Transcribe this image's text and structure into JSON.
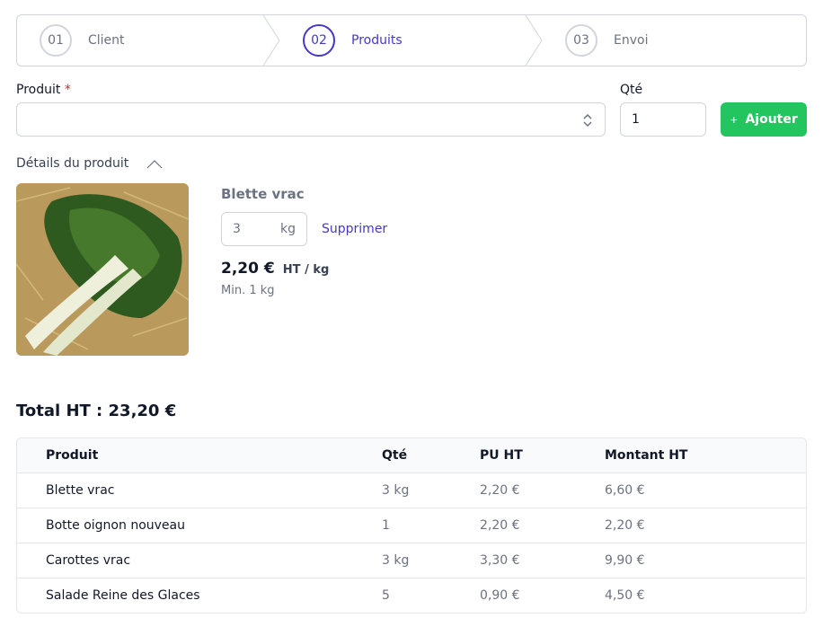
{
  "steps": [
    {
      "number": "01",
      "label": "Client"
    },
    {
      "number": "02",
      "label": "Produits"
    },
    {
      "number": "03",
      "label": "Envoi"
    }
  ],
  "form": {
    "product_label": "Produit",
    "required_mark": "*",
    "qty_label": "Qté",
    "qty_value": "1",
    "add_icon": "+",
    "add_button": "Ajouter"
  },
  "details": {
    "toggle": "Détails du produit",
    "name": "Blette vrac",
    "qty": "3",
    "unit": "kg",
    "remove": "Supprimer",
    "price": "2,20 €",
    "price_unit": "HT / kg",
    "minimum": "Min. 1 kg"
  },
  "total": "Total HT : 23,20 €",
  "table": {
    "headers": [
      "Produit",
      "Qté",
      "PU HT",
      "Montant HT"
    ],
    "rows": [
      [
        "Blette vrac",
        "3 kg",
        "2,20 €",
        "6,60 €"
      ],
      [
        "Botte oignon nouveau",
        "1",
        "2,20 €",
        "2,20 €"
      ],
      [
        "Carottes vrac",
        "3 kg",
        "3,30 €",
        "9,90 €"
      ],
      [
        "Salade Reine des Glaces",
        "5",
        "0,90 €",
        "4,50 €"
      ]
    ]
  }
}
